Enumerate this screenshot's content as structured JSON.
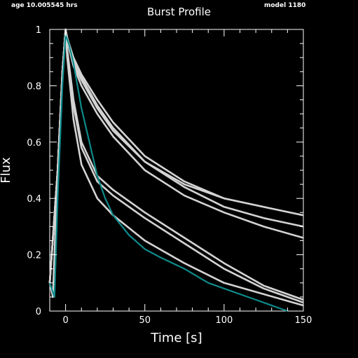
{
  "header": {
    "age": "age 10.005545 hrs",
    "model": "model 1180"
  },
  "chart_data": {
    "type": "line",
    "title": "Burst Profile",
    "xlabel": "Time [s]",
    "ylabel": "Flux",
    "xlim": [
      -10,
      150
    ],
    "ylim": [
      0,
      1
    ],
    "grid": false,
    "x_ticks": [
      0,
      50,
      100,
      150
    ],
    "y_ticks": [
      0,
      0.2,
      0.4,
      0.6,
      0.8,
      1
    ],
    "y_tick_labels": [
      "0",
      "0.2",
      "0.4",
      "0.6",
      "0.8",
      "1"
    ],
    "colors": {
      "grey": "#d3d3d3",
      "teal": "#0e8a8a",
      "axes": "#ffffff",
      "background": "#000000"
    },
    "series": [
      {
        "color": "grey",
        "x": [
          -10,
          -8,
          -5,
          -2,
          0,
          1,
          5,
          10,
          20,
          30,
          50,
          75,
          100,
          125,
          150
        ],
        "y": [
          0.1,
          0.05,
          0.5,
          0.85,
          1.0,
          0.97,
          0.9,
          0.84,
          0.75,
          0.67,
          0.55,
          0.46,
          0.4,
          0.37,
          0.34
        ]
      },
      {
        "color": "grey",
        "x": [
          -10,
          -5,
          -2,
          0,
          1,
          5,
          10,
          20,
          30,
          50,
          75,
          100,
          125,
          150
        ],
        "y": [
          0.1,
          0.5,
          0.85,
          1.0,
          0.97,
          0.89,
          0.83,
          0.73,
          0.65,
          0.53,
          0.44,
          0.37,
          0.33,
          0.3
        ]
      },
      {
        "color": "grey",
        "x": [
          -10,
          -5,
          -2,
          0,
          1,
          5,
          10,
          20,
          30,
          50,
          75,
          100,
          125,
          150
        ],
        "y": [
          0.1,
          0.5,
          0.85,
          1.0,
          0.96,
          0.87,
          0.8,
          0.7,
          0.62,
          0.5,
          0.41,
          0.35,
          0.3,
          0.26
        ]
      },
      {
        "color": "grey",
        "x": [
          -2,
          0,
          1,
          5,
          10,
          20,
          30,
          50,
          75,
          100
        ],
        "y": [
          0.85,
          1.0,
          0.97,
          0.88,
          0.82,
          0.72,
          0.64,
          0.53,
          0.45,
          0.4
        ]
      },
      {
        "color": "grey",
        "x": [
          -10,
          -5,
          -2,
          0,
          1,
          5,
          10,
          20,
          30,
          50,
          75,
          100,
          125,
          150
        ],
        "y": [
          0.1,
          0.5,
          0.85,
          1.0,
          0.93,
          0.75,
          0.6,
          0.48,
          0.43,
          0.35,
          0.26,
          0.17,
          0.09,
          0.04
        ]
      },
      {
        "color": "grey",
        "x": [
          -10,
          -5,
          -2,
          0,
          1,
          5,
          10,
          20,
          30,
          50,
          75,
          100,
          125,
          150
        ],
        "y": [
          0.1,
          0.5,
          0.85,
          1.0,
          0.92,
          0.73,
          0.58,
          0.46,
          0.41,
          0.33,
          0.24,
          0.15,
          0.08,
          0.03
        ]
      },
      {
        "color": "grey",
        "x": [
          -10,
          -5,
          -2,
          0,
          1,
          5,
          10,
          20,
          30,
          50,
          75,
          100,
          125,
          150
        ],
        "y": [
          0.1,
          0.5,
          0.85,
          1.0,
          0.9,
          0.68,
          0.52,
          0.4,
          0.34,
          0.25,
          0.17,
          0.1,
          0.06,
          0.02
        ]
      },
      {
        "color": "teal",
        "x": [
          -10,
          -7,
          -5,
          -2,
          0,
          2,
          5,
          10,
          15,
          20,
          25,
          30,
          40,
          50,
          60,
          75,
          90,
          110,
          125,
          135,
          140
        ],
        "y": [
          0.1,
          0.05,
          0.4,
          0.8,
          0.98,
          0.95,
          0.88,
          0.72,
          0.6,
          0.48,
          0.4,
          0.34,
          0.27,
          0.22,
          0.19,
          0.15,
          0.1,
          0.06,
          0.03,
          0.01,
          0.0
        ]
      }
    ]
  }
}
